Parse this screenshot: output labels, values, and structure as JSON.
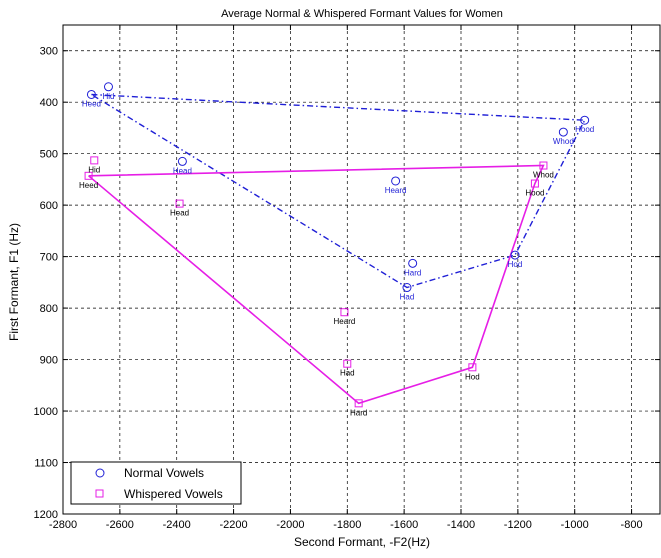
{
  "chart_data": {
    "type": "scatter",
    "title": "Average Normal & Whispered Formant Values for Women",
    "xlabel": "Second Formant, -F2(Hz)",
    "ylabel": "First Formant, F1 (Hz)",
    "xlim": [
      -2800,
      -700
    ],
    "ylim": [
      250,
      1200
    ],
    "y_reversed": true,
    "grid": true,
    "legend_position": "bottom-left",
    "x_ticks": [
      -2800,
      -2600,
      -2400,
      -2200,
      -2000,
      -1800,
      -1600,
      -1400,
      -1200,
      -1000,
      -800
    ],
    "y_ticks": [
      300,
      400,
      500,
      600,
      700,
      800,
      900,
      1000,
      1100,
      1200
    ],
    "series": [
      {
        "name": "Normal Vowels",
        "marker": "circle",
        "color": "#1f1fd6",
        "points": [
          {
            "x": -2640,
            "y": 370,
            "label": "Hid"
          },
          {
            "x": -2700,
            "y": 385,
            "label": "Heed"
          },
          {
            "x": -2380,
            "y": 515,
            "label": "Head"
          },
          {
            "x": -1630,
            "y": 553,
            "label": "Heard"
          },
          {
            "x": -1570,
            "y": 713,
            "label": "Hard"
          },
          {
            "x": -1590,
            "y": 760,
            "label": "Had"
          },
          {
            "x": -1210,
            "y": 697,
            "label": "Hod"
          },
          {
            "x": -1040,
            "y": 458,
            "label": "Whod"
          },
          {
            "x": -965,
            "y": 435,
            "label": "Hood"
          }
        ],
        "polygon": [
          {
            "x": -2700,
            "y": 385
          },
          {
            "x": -965,
            "y": 435
          },
          {
            "x": -1210,
            "y": 697
          },
          {
            "x": -1590,
            "y": 760
          },
          {
            "x": -2700,
            "y": 385
          }
        ],
        "line_style": "dash-dot"
      },
      {
        "name": "Whispered Vowels",
        "marker": "square",
        "color": "#e61ee6",
        "points": [
          {
            "x": -2690,
            "y": 513,
            "label": "Hid"
          },
          {
            "x": -2710,
            "y": 543,
            "label": "Heed"
          },
          {
            "x": -2390,
            "y": 597,
            "label": "Head"
          },
          {
            "x": -1810,
            "y": 808,
            "label": "Heard"
          },
          {
            "x": -1800,
            "y": 908,
            "label": "Had"
          },
          {
            "x": -1760,
            "y": 985,
            "label": "Hard"
          },
          {
            "x": -1360,
            "y": 915,
            "label": "Hod"
          },
          {
            "x": -1140,
            "y": 558,
            "label": "Hood"
          },
          {
            "x": -1110,
            "y": 523,
            "label": "Whod"
          }
        ],
        "polygon": [
          {
            "x": -2710,
            "y": 543
          },
          {
            "x": -1110,
            "y": 523
          },
          {
            "x": -1140,
            "y": 558
          },
          {
            "x": -1360,
            "y": 915
          },
          {
            "x": -1760,
            "y": 985
          },
          {
            "x": -2710,
            "y": 543
          }
        ],
        "line_style": "solid"
      }
    ]
  }
}
